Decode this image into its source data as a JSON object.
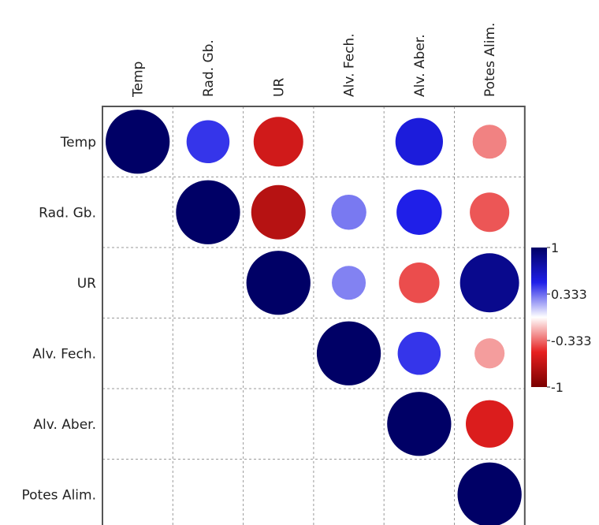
{
  "chart_data": {
    "type": "heatmap",
    "title": "",
    "variables": [
      "Temp",
      "Rad. Gb.",
      "UR",
      "Alv. Fech.",
      "Alv. Aber.",
      "Potes Alim."
    ],
    "shape": "circle",
    "triangle": "upper",
    "matrix": [
      [
        1,
        0.45,
        -0.6,
        0.0,
        0.55,
        -0.28
      ],
      [
        null,
        1,
        -0.72,
        0.3,
        0.5,
        -0.38
      ],
      [
        null,
        null,
        1,
        0.28,
        -0.4,
        0.85
      ],
      [
        null,
        null,
        null,
        1,
        0.45,
        -0.22
      ],
      [
        null,
        null,
        null,
        null,
        1,
        -0.55
      ],
      [
        null,
        null,
        null,
        null,
        null,
        1
      ]
    ],
    "colorbar": {
      "range": [
        -1,
        1
      ],
      "ticks": [
        "1",
        "0.333",
        "-0.333",
        "-1"
      ],
      "tick_values": [
        1,
        0.333,
        -0.333,
        -1
      ],
      "colors": {
        "negative": "#7a0000",
        "mid_neg": "#e62020",
        "zero": "#ffffff",
        "mid_pos": "#1f1fe8",
        "positive": "#000066"
      }
    },
    "grid": true
  }
}
